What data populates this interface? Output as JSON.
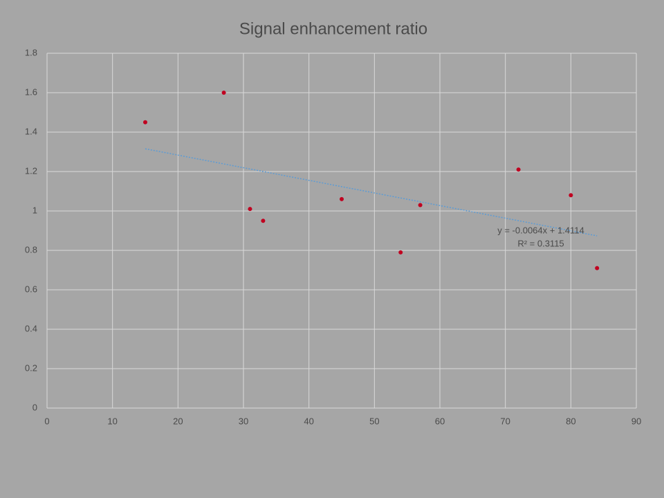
{
  "chart_data": {
    "type": "scatter",
    "title": "Signal enhancement ratio",
    "x": [
      15,
      27,
      31,
      33,
      45,
      54,
      57,
      72,
      80,
      84
    ],
    "values": [
      1.45,
      1.6,
      1.01,
      0.95,
      1.06,
      0.79,
      1.03,
      1.21,
      1.08,
      0.71
    ],
    "color": "#c00020",
    "xlim": [
      0,
      90
    ],
    "xticks": [
      0,
      10,
      20,
      30,
      40,
      50,
      60,
      70,
      80,
      90
    ],
    "ylim": [
      0,
      1.8
    ],
    "yticks": [
      0,
      0.2,
      0.4,
      0.6,
      0.8,
      1,
      1.2,
      1.4,
      1.6,
      1.8
    ],
    "grid": true,
    "trendline": {
      "slope": -0.0064,
      "intercept": 1.4114,
      "color": "#5b9bd5",
      "label": "y = -0.0064x + 1.4114",
      "r2_label": "R² = 0.3115"
    }
  }
}
